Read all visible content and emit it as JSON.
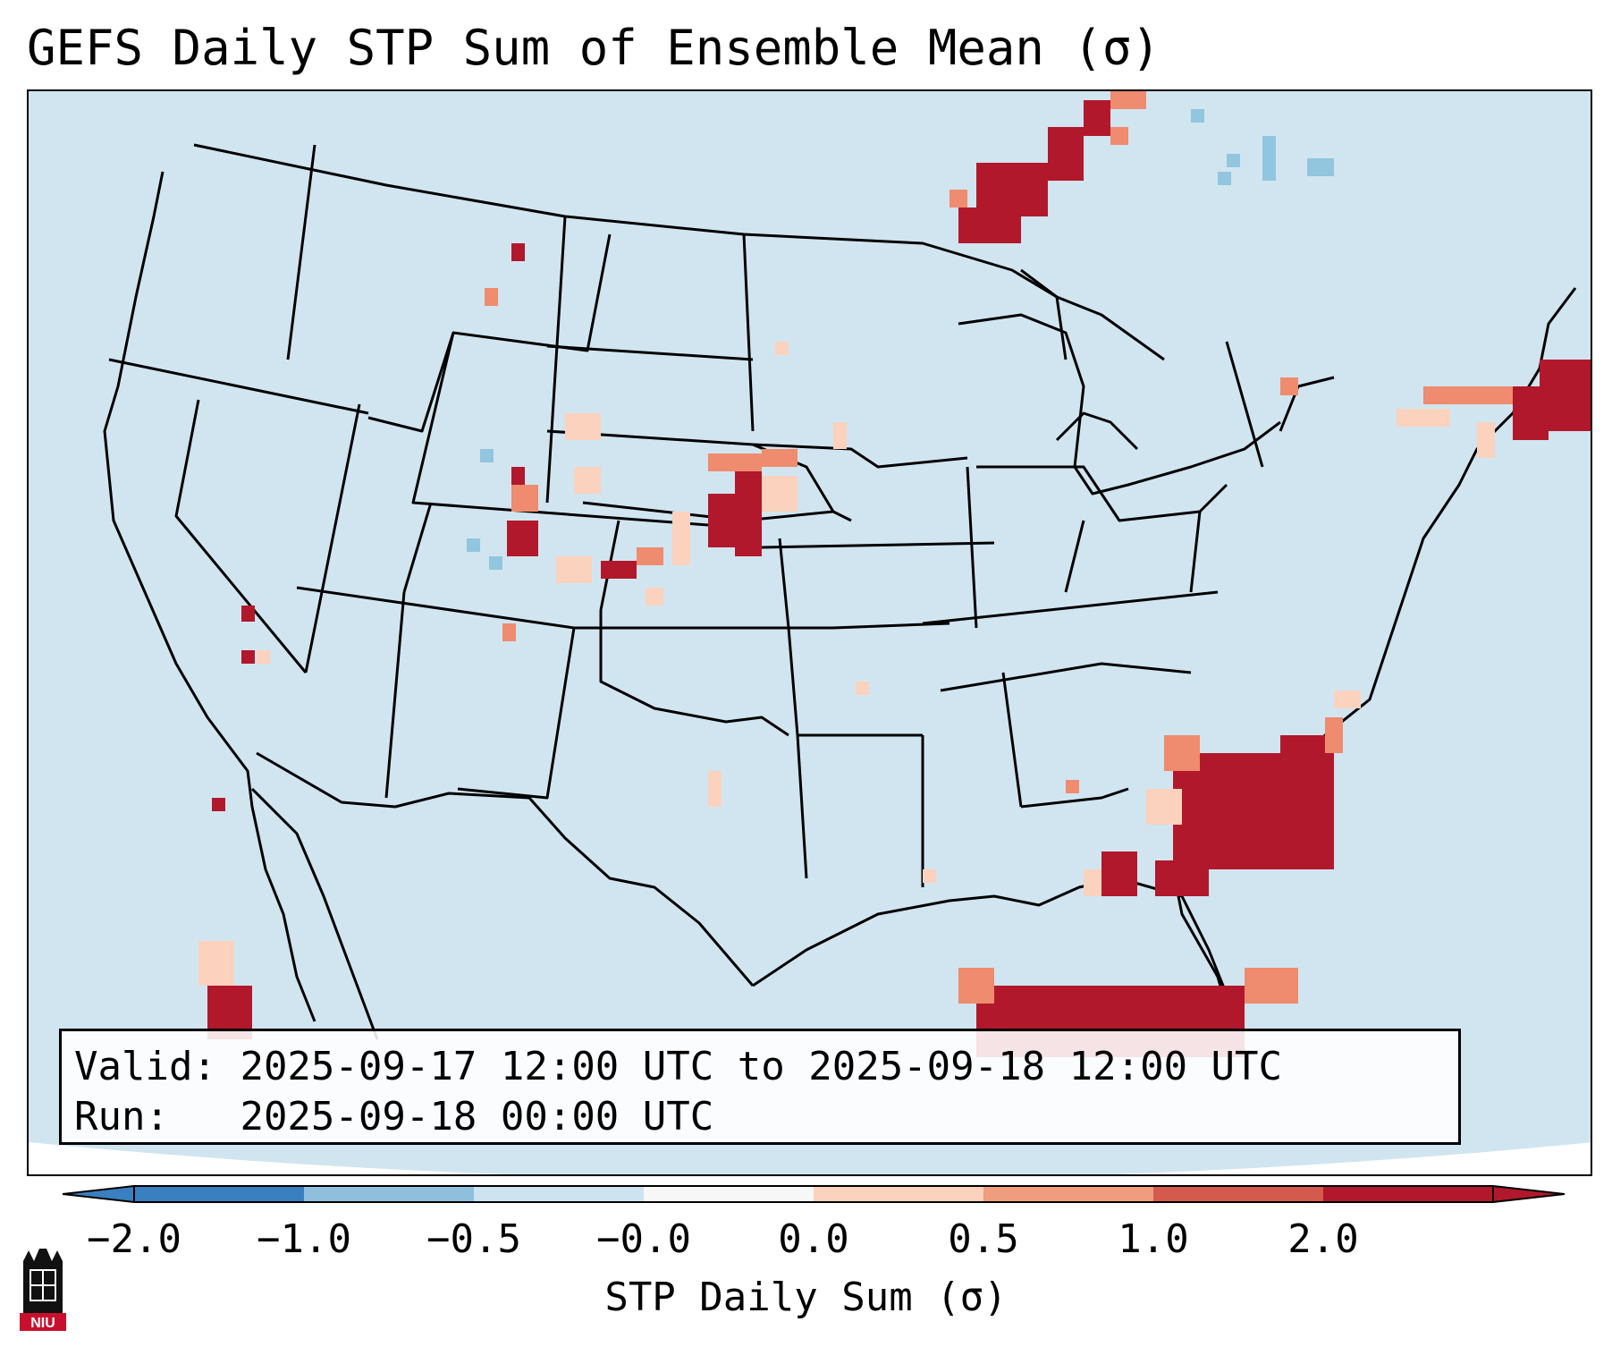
{
  "title": "GEFS Daily STP Sum of Ensemble Mean (σ)",
  "valid_label": "Valid:",
  "valid_value": "2025-09-17 12:00 UTC to 2025-09-18 12:00 UTC",
  "run_label": "Run:",
  "run_value": "2025-09-18 00:00 UTC",
  "colorbar": {
    "label": "STP Daily Sum (σ)",
    "ticks": [
      "−2.0",
      "−1.0",
      "−0.5",
      "−0.0",
      "0.0",
      "0.5",
      "1.0",
      "2.0"
    ],
    "colors": [
      "#3a7fbf",
      "#8fbfdd",
      "#cde3ef",
      "#f7f7f7",
      "#fbd2bd",
      "#ef9d7e",
      "#d45a4e",
      "#b2182b"
    ]
  },
  "map": {
    "background_color": "#d1e5f0",
    "region": "CONUS",
    "hotspot_colors": {
      "strong": "#b2182b",
      "moderate": "#ef8b6e",
      "light": "#fbd2bd",
      "negative": "#92c5de"
    }
  },
  "logo": {
    "text": "NIU"
  }
}
